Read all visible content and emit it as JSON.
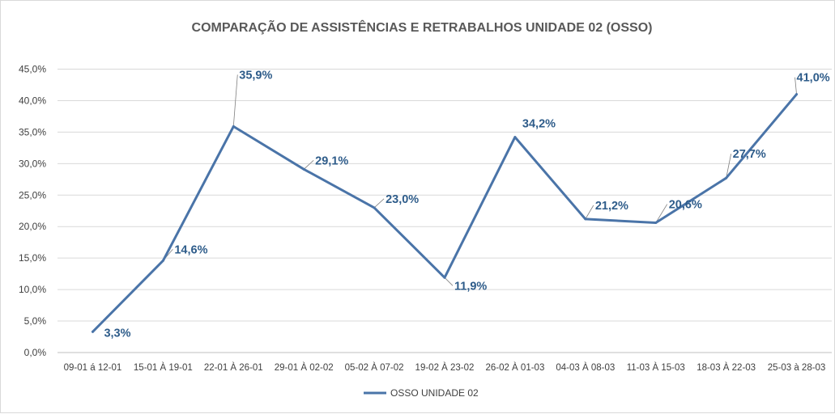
{
  "chart_data": {
    "type": "line",
    "title": "COMPARAÇÃO DE ASSISTÊNCIAS E RETRABALHOS UNIDADE 02  (OSSO)",
    "xlabel": "",
    "ylabel": "",
    "ylim": [
      0,
      45
    ],
    "yticks": [
      "0,0%",
      "5,0%",
      "10,0%",
      "15,0%",
      "20,0%",
      "25,0%",
      "30,0%",
      "35,0%",
      "40,0%",
      "45,0%"
    ],
    "categories": [
      "09-01 á 12-01",
      "15-01 À 19-01",
      "22-01 À 26-01",
      "29-01 À 02-02",
      "05-02 À 07-02",
      "19-02 À 23-02",
      "26-02 À 01-03",
      "04-03 À 08-03",
      "11-03 À 15-03",
      "18-03 À 22-03",
      "25-03 à 28-03"
    ],
    "series": [
      {
        "name": "OSSO UNIDADE 02",
        "values": [
          3.3,
          14.6,
          35.9,
          29.1,
          23.0,
          11.9,
          34.2,
          21.2,
          20.6,
          27.7,
          41.0
        ],
        "labels": [
          "3,3%",
          "14,6%",
          "35,9%",
          "29,1%",
          "23,0%",
          "11,9%",
          "34,2%",
          "21,2%",
          "20,6%",
          "27,7%",
          "41,0%"
        ],
        "color": "#4a74a8"
      }
    ],
    "grid": true,
    "legend": "bottom"
  }
}
